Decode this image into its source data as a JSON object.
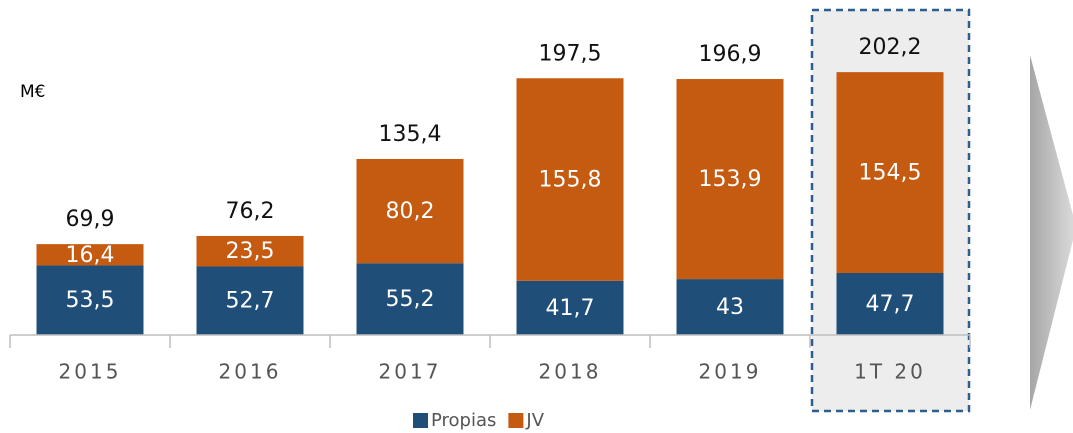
{
  "chart_data": {
    "type": "stacked_bar",
    "y_label": "M€",
    "categories": [
      "2015",
      "2016",
      "2017",
      "2018",
      "2019",
      "1T 20"
    ],
    "series": [
      {
        "name": "Propias",
        "color": "#1f4e79",
        "values": [
          53.5,
          52.7,
          55.2,
          41.7,
          43,
          47.7
        ],
        "value_labels": [
          "53,5",
          "52,7",
          "55,2",
          "41,7",
          "43",
          "47,7"
        ]
      },
      {
        "name": "JV",
        "color": "#c55a11",
        "values": [
          16.4,
          23.5,
          80.2,
          155.8,
          153.9,
          154.5
        ],
        "value_labels": [
          "16,4",
          "23,5",
          "80,2",
          "155,8",
          "153,9",
          "154,5"
        ]
      }
    ],
    "totals": {
      "values": [
        69.9,
        76.2,
        135.4,
        197.5,
        196.9,
        202.2
      ],
      "value_labels": [
        "69,9",
        "76,2",
        "135,4",
        "197,5",
        "196,9",
        "202,2"
      ]
    },
    "ylim": [
      0,
      220
    ],
    "legend": "bottom"
  }
}
